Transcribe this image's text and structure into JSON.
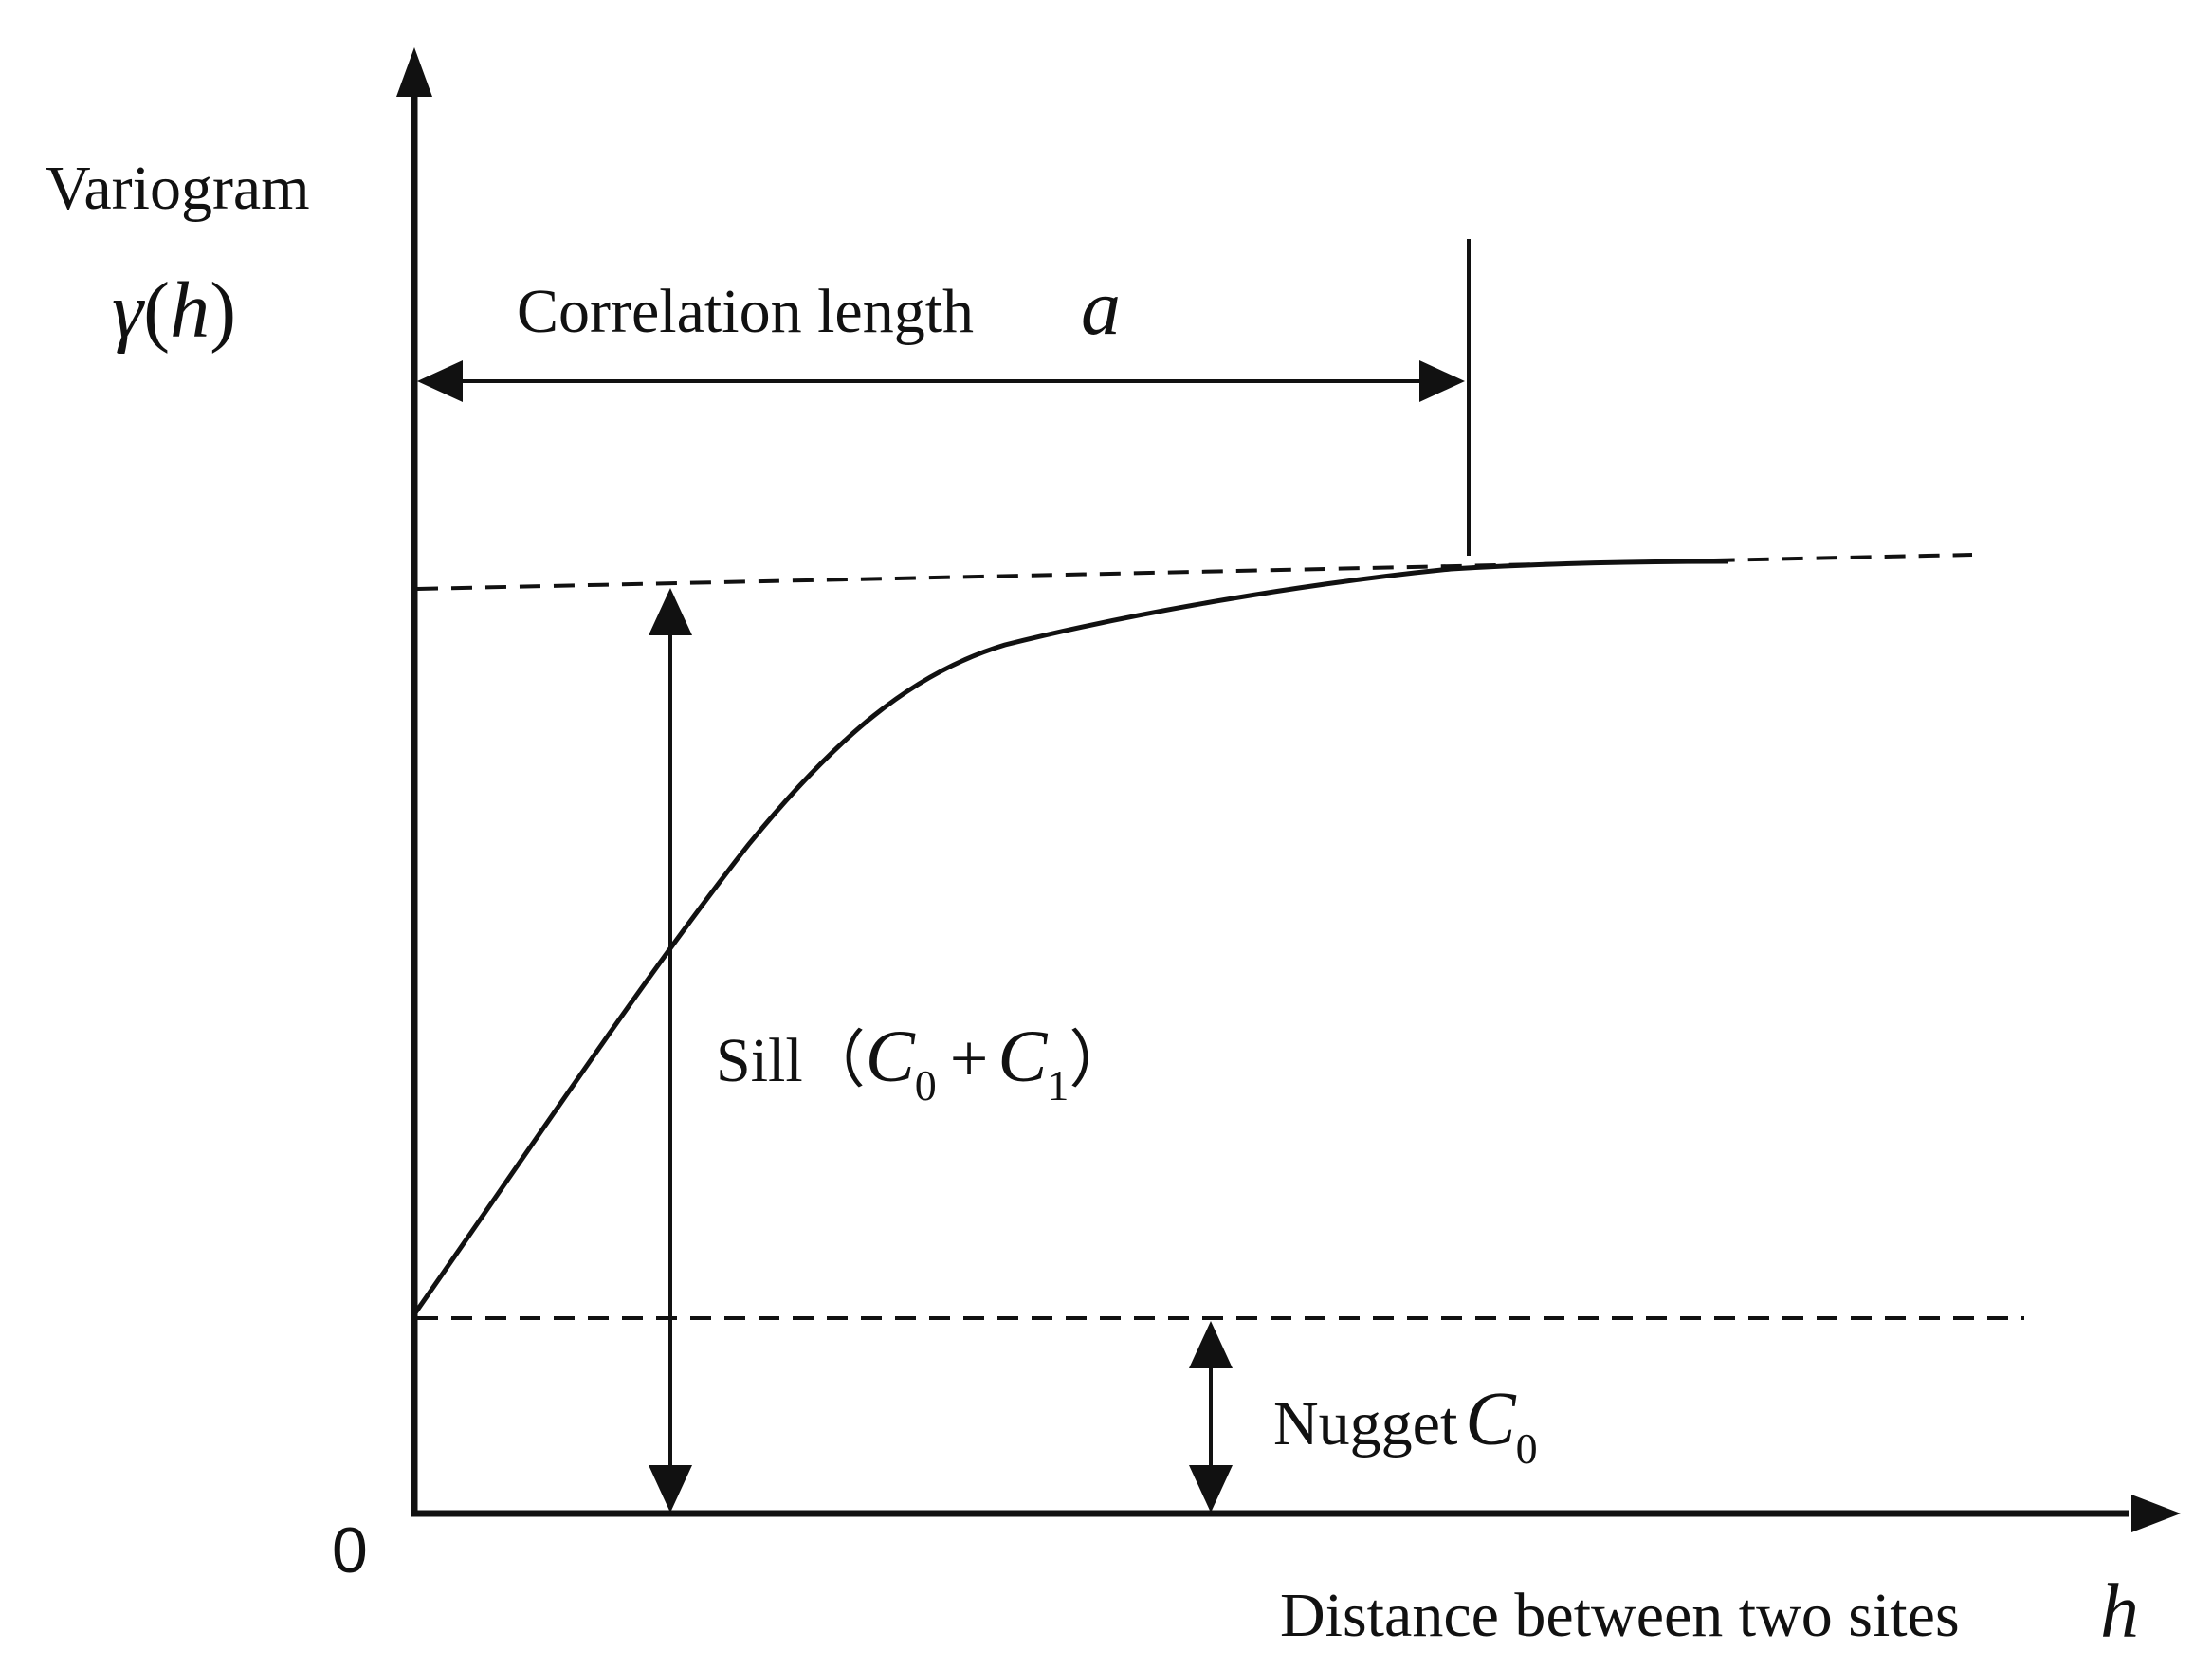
{
  "y_axis": {
    "title": "Variogram",
    "symbol_main": "γ",
    "symbol_open": "(",
    "symbol_var": "h",
    "symbol_close": ")"
  },
  "x_axis": {
    "title": "Distance between two sites",
    "symbol": "h"
  },
  "origin_label": "0",
  "correlation_length": {
    "text": "Correlation length",
    "symbol": "a"
  },
  "sill": {
    "text": "Sill",
    "paren_open": "（",
    "c0": "C",
    "c0_sub": "0",
    "plus": "+",
    "c1": "C",
    "c1_sub": "1",
    "paren_close": "）"
  },
  "nugget": {
    "text": "Nugget",
    "symbol": "C",
    "symbol_sub": "0"
  },
  "colors": {
    "ink": "#111111",
    "background": "#ffffff"
  }
}
